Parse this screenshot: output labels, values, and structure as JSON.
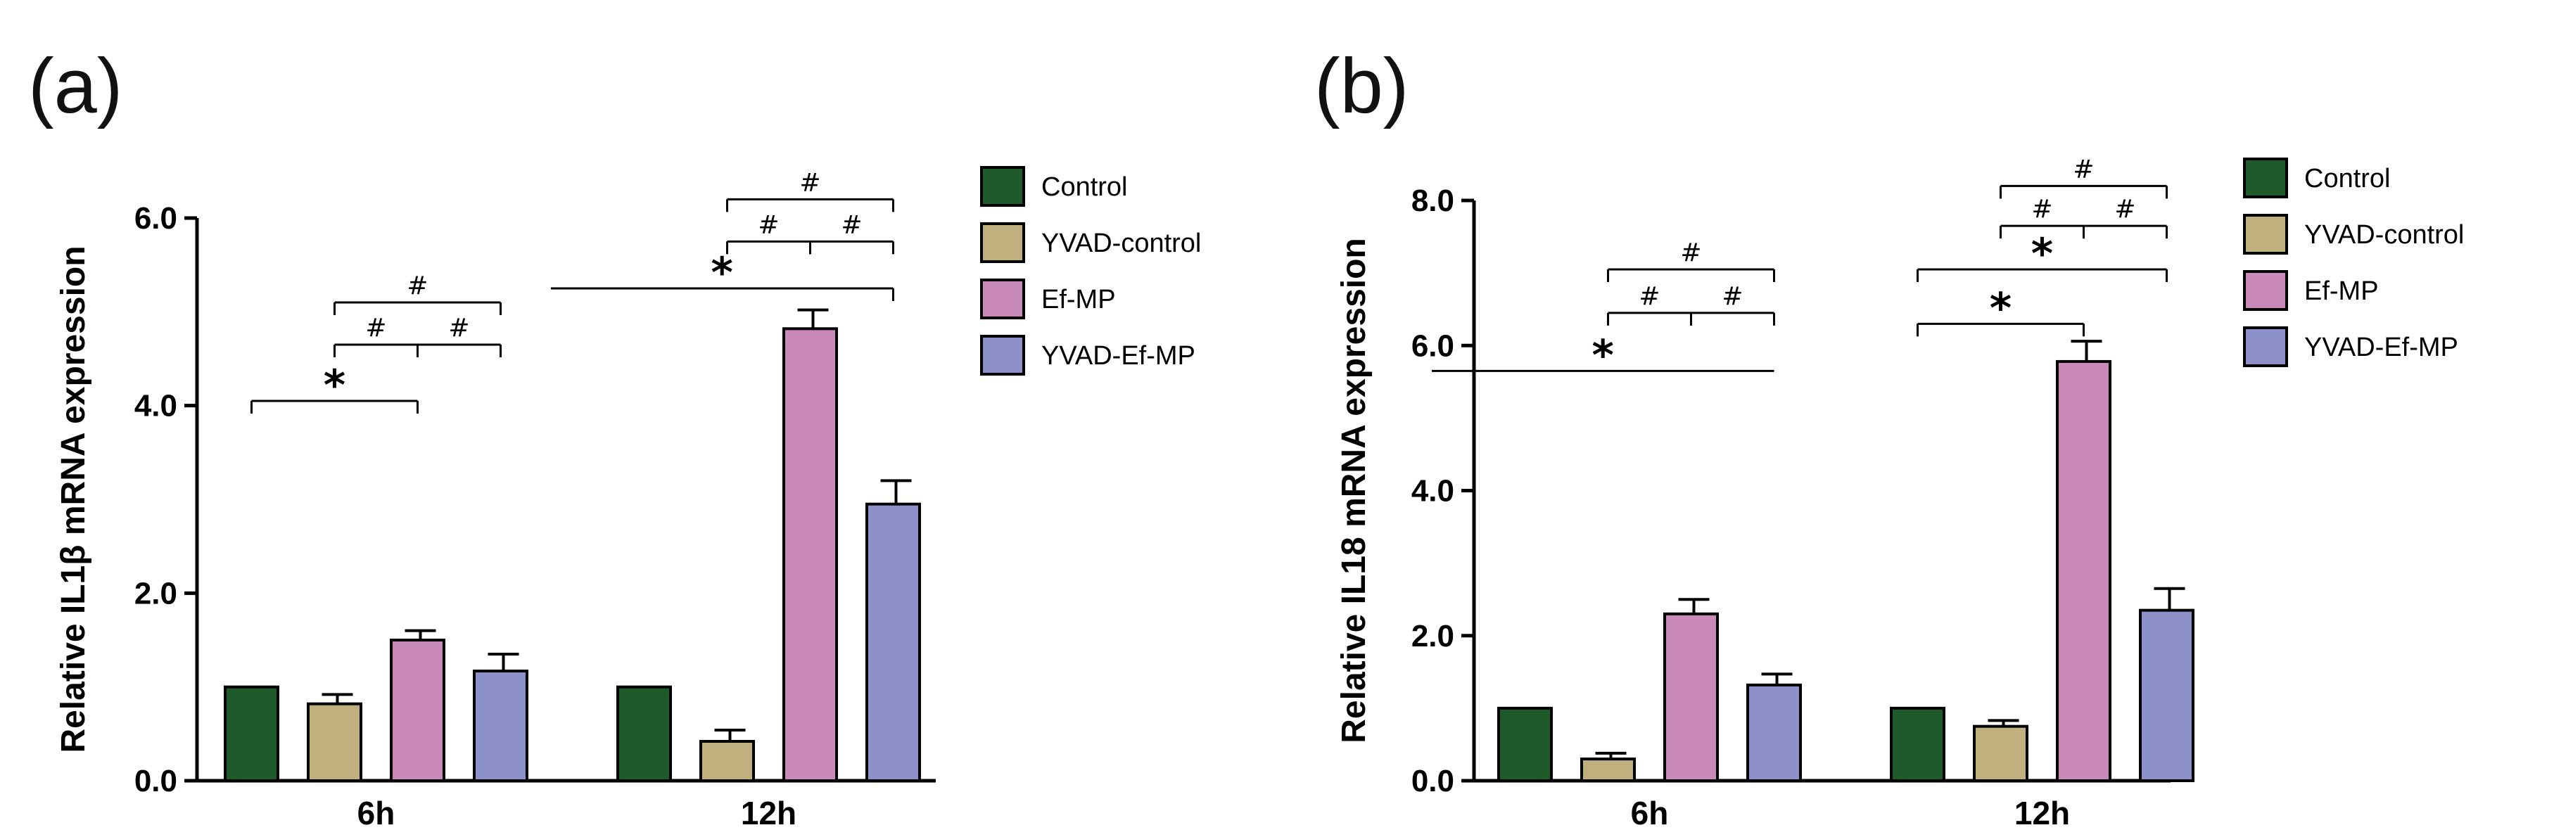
{
  "colors": {
    "Control": "#1f5a2b",
    "YVAD-control": "#c0b07d",
    "Ef-MP": "#c98ab9",
    "YVAD-Ef-MP": "#8d90c9"
  },
  "legend": [
    "Control",
    "YVAD-control",
    "Ef-MP",
    "YVAD-Ef-MP"
  ],
  "chart_data": [
    {
      "panel": "(a)",
      "type": "bar",
      "ylabel": "Relative IL1β mRNA expression",
      "ylim": [
        0,
        6.0
      ],
      "yticks": [
        0.0,
        2.0,
        4.0,
        6.0
      ],
      "ytick_labels": [
        "0.0",
        "2.0",
        "4.0",
        "6.0"
      ],
      "categories": [
        "6h",
        "12h"
      ],
      "series": [
        {
          "name": "Control",
          "values": [
            1.0,
            1.0
          ],
          "errors": [
            0,
            0
          ]
        },
        {
          "name": "YVAD-control",
          "values": [
            0.82,
            0.42
          ],
          "errors": [
            0.1,
            0.12
          ]
        },
        {
          "name": "Ef-MP",
          "values": [
            1.5,
            4.82
          ],
          "errors": [
            0.1,
            0.2
          ]
        },
        {
          "name": "YVAD-Ef-MP",
          "values": [
            1.17,
            2.95
          ],
          "errors": [
            0.18,
            0.25
          ]
        }
      ],
      "annotations": [
        {
          "group": 0,
          "from": 0,
          "to": 2,
          "y": 4.05,
          "label": "*",
          "ticks": "both"
        },
        {
          "group": 0,
          "from": 2,
          "to": 3,
          "mid": 2.5,
          "y": 4.65,
          "label": "#",
          "ticks": "both"
        },
        {
          "group": 0,
          "from": 1,
          "to": 2,
          "y": 4.65,
          "label": "#",
          "ticks": "both"
        },
        {
          "group": 0,
          "from": 1,
          "to": 3,
          "y": 5.1,
          "label": "#",
          "ticks": "both"
        },
        {
          "group": 1,
          "from": -1,
          "to": 3,
          "y": 5.25,
          "label": "*",
          "ticks": "right"
        },
        {
          "group": 1,
          "from": 2,
          "to": 3,
          "y": 5.75,
          "label": "#",
          "ticks": "both"
        },
        {
          "group": 1,
          "from": 1,
          "to": 2,
          "y": 5.75,
          "label": "#",
          "ticks": "both"
        },
        {
          "group": 1,
          "from": 1,
          "to": 3,
          "y": 6.2,
          "label": "#",
          "ticks": "both"
        }
      ]
    },
    {
      "panel": "(b)",
      "type": "bar",
      "ylabel": "Relative IL18 mRNA expression",
      "ylim": [
        0,
        8.0
      ],
      "yticks": [
        0.0,
        2.0,
        4.0,
        6.0,
        8.0
      ],
      "ytick_labels": [
        "0.0",
        "2.0",
        "4.0",
        "6.0",
        "8.0"
      ],
      "categories": [
        "6h",
        "12h"
      ],
      "series": [
        {
          "name": "Control",
          "values": [
            1.0,
            1.0
          ],
          "errors": [
            0,
            0
          ]
        },
        {
          "name": "YVAD-control",
          "values": [
            0.3,
            0.75
          ],
          "errors": [
            0.08,
            0.08
          ]
        },
        {
          "name": "Ef-MP",
          "values": [
            2.3,
            5.78
          ],
          "errors": [
            0.2,
            0.28
          ]
        },
        {
          "name": "YVAD-Ef-MP",
          "values": [
            1.32,
            2.35
          ],
          "errors": [
            0.15,
            0.3
          ]
        }
      ],
      "annotations": [
        {
          "group": 0,
          "from": -1,
          "to": 3,
          "y": 5.65,
          "label": "*",
          "ticks": "none"
        },
        {
          "group": 0,
          "from": 2,
          "to": 3,
          "y": 6.45,
          "label": "#",
          "ticks": "both"
        },
        {
          "group": 0,
          "from": 1,
          "to": 2,
          "y": 6.45,
          "label": "#",
          "ticks": "both"
        },
        {
          "group": 0,
          "from": 1,
          "to": 3,
          "y": 7.05,
          "label": "#",
          "ticks": "both"
        },
        {
          "group": 1,
          "from": 0,
          "to": 2,
          "y": 6.3,
          "label": "*",
          "ticks": "both"
        },
        {
          "group": 1,
          "from": 0,
          "to": 3,
          "y": 7.05,
          "label": "*",
          "ticks": "both"
        },
        {
          "group": 1,
          "from": 2,
          "to": 3,
          "y": 7.65,
          "label": "#",
          "ticks": "both"
        },
        {
          "group": 1,
          "from": 1,
          "to": 2,
          "y": 7.65,
          "label": "#",
          "ticks": "both"
        },
        {
          "group": 1,
          "from": 1,
          "to": 3,
          "y": 8.2,
          "label": "#",
          "ticks": "both"
        }
      ]
    }
  ]
}
